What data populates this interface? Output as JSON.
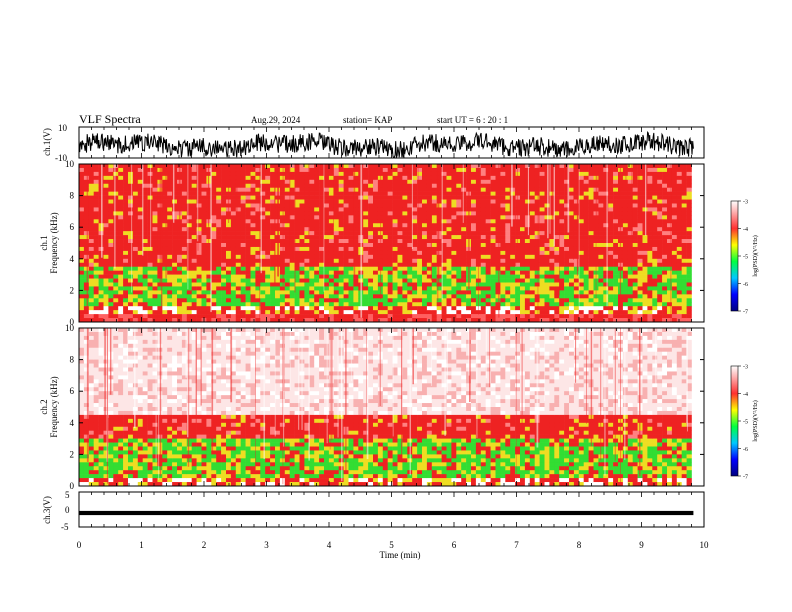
{
  "header": {
    "title": "VLF Spectra",
    "date": "Aug.29, 2024",
    "station": "station= KAP",
    "start_ut": "start  UT  =   6  : 20 : 1"
  },
  "chart_data": [
    {
      "type": "line",
      "name": "ch1-waveform",
      "ylabel": "ch.1(V)",
      "ylim": [
        -10,
        10
      ],
      "yticks": [
        "10",
        "-10"
      ],
      "xlim": [
        0,
        10
      ],
      "description_values": {
        "center": -2,
        "amplitude": 6
      }
    },
    {
      "type": "heatmap",
      "name": "ch1-spectrogram",
      "ylabel": "ch.1\nFrequency (kHz)",
      "ylabel_line1": "ch.1",
      "ylabel_line2": "Frequency  (kHz)",
      "ylim": [
        0,
        10
      ],
      "yticks": [
        0,
        2,
        4,
        6,
        8,
        10
      ],
      "xlim": [
        0,
        9.8
      ],
      "bands_khz": [
        {
          "from": 0.0,
          "to": 0.4,
          "level": "high"
        },
        {
          "from": 0.4,
          "to": 0.9,
          "level": "mixed"
        },
        {
          "from": 0.9,
          "to": 3.5,
          "level": "green"
        },
        {
          "from": 3.5,
          "to": 10.0,
          "level": "red"
        }
      ],
      "colorbar": {
        "label": "log(PSD)(V²/Hz)",
        "ticks": [
          "-3",
          "-4",
          "-5",
          "-6",
          "-7"
        ],
        "range": [
          -7,
          -3
        ]
      }
    },
    {
      "type": "heatmap",
      "name": "ch2-spectrogram",
      "ylabel": "ch.2\nFrequency (kHz)",
      "ylabel_line1": "ch.2",
      "ylabel_line2": "Frequency  (kHz)",
      "ylim": [
        0,
        10
      ],
      "yticks": [
        0,
        2,
        4,
        6,
        8,
        10
      ],
      "xlim": [
        0,
        9.8
      ],
      "bands_khz": [
        {
          "from": 0.0,
          "to": 0.6,
          "level": "mixed"
        },
        {
          "from": 0.6,
          "to": 3.0,
          "level": "green"
        },
        {
          "from": 3.0,
          "to": 4.5,
          "level": "red"
        },
        {
          "from": 4.5,
          "to": 10.0,
          "level": "pale"
        }
      ],
      "colorbar": {
        "label": "log(PSD)(V²/Hz)",
        "ticks": [
          "-3",
          "-4",
          "-5",
          "-6",
          "-7"
        ],
        "range": [
          -7,
          -3
        ]
      }
    },
    {
      "type": "line",
      "name": "ch3-waveform",
      "ylabel": "ch.3(V)",
      "ylim": [
        -5,
        5
      ],
      "yticks": [
        "5",
        "0",
        "-5"
      ],
      "xlim": [
        0,
        10
      ],
      "description_values": {
        "center": -1,
        "amplitude": 0.6
      }
    }
  ],
  "x_axis": {
    "label": "Time  (min)",
    "ticks": [
      "0",
      "1",
      "2",
      "3",
      "4",
      "5",
      "6",
      "7",
      "8",
      "9",
      "10"
    ],
    "range": [
      0,
      10
    ]
  },
  "colors": {
    "red": "#ee2222",
    "green": "#33dd33",
    "yellow": "#eedd22",
    "pale": "#fde6e6",
    "line": "#000000"
  }
}
